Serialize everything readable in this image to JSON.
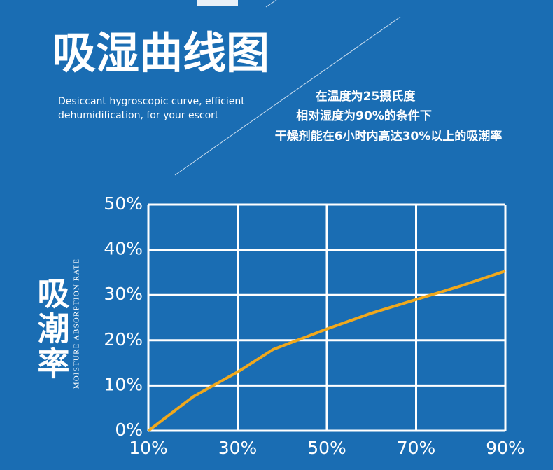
{
  "chart_data": {
    "type": "line",
    "title": "吸湿曲线图",
    "subtitle": [
      "Desiccant hygroscopic curve, efficient",
      "dehumidification, for your escort"
    ],
    "annotations": [
      "在温度为25摄氏度",
      "相对湿度为90%的条件下",
      "干燥剂能在6小时内高达30%以上的吸潮率"
    ],
    "y_label": "吸潮率",
    "y_label_en": "MOISTURE ABSORPTION RATE",
    "x": [
      10,
      20,
      30,
      38,
      50,
      60,
      70,
      80,
      90
    ],
    "values": [
      0,
      7.5,
      13,
      18,
      22.5,
      26,
      29,
      32,
      35.3
    ],
    "color": "#f0a81c",
    "xlim": [
      10,
      90
    ],
    "xticks": [
      {
        "value": 10,
        "label": "10%"
      },
      {
        "value": 30,
        "label": "30%"
      },
      {
        "value": 50,
        "label": "50%"
      },
      {
        "value": 70,
        "label": "70%"
      },
      {
        "value": 90,
        "label": "90%"
      }
    ],
    "ylim": [
      0,
      50
    ],
    "yticks": [
      {
        "value": 0,
        "label": "0%"
      },
      {
        "value": 10,
        "label": "10%"
      },
      {
        "value": 20,
        "label": "20%"
      },
      {
        "value": 30,
        "label": "30%"
      },
      {
        "value": 40,
        "label": "40%"
      },
      {
        "value": 50,
        "label": "50%"
      }
    ],
    "grid": true
  }
}
